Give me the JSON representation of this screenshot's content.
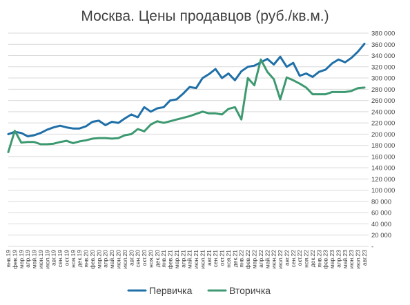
{
  "chart_data": {
    "type": "line",
    "title": "Москва. Цены продавцов (руб./кв.м.)",
    "xlabel": "",
    "ylabel": "",
    "ylim": [
      0,
      380000
    ],
    "y_ticks": [
      {
        "value": 0,
        "label": "-"
      },
      {
        "value": 20000,
        "label": "20 000"
      },
      {
        "value": 40000,
        "label": "40 000"
      },
      {
        "value": 60000,
        "label": "60 000"
      },
      {
        "value": 80000,
        "label": "80 000"
      },
      {
        "value": 100000,
        "label": "100 000"
      },
      {
        "value": 120000,
        "label": "120 000"
      },
      {
        "value": 140000,
        "label": "140 000"
      },
      {
        "value": 160000,
        "label": "160 000"
      },
      {
        "value": 180000,
        "label": "180 000"
      },
      {
        "value": 200000,
        "label": "200 000"
      },
      {
        "value": 220000,
        "label": "220 000"
      },
      {
        "value": 240000,
        "label": "240 000"
      },
      {
        "value": 260000,
        "label": "260 000"
      },
      {
        "value": 280000,
        "label": "280 000"
      },
      {
        "value": 300000,
        "label": "300 000"
      },
      {
        "value": 320000,
        "label": "320 000"
      },
      {
        "value": 340000,
        "label": "340 000"
      },
      {
        "value": 360000,
        "label": "360 000"
      },
      {
        "value": 380000,
        "label": "380 000"
      }
    ],
    "y_axis_side": "right",
    "grid": true,
    "legend_position": "bottom",
    "categories": [
      "янв.19",
      "фев.19",
      "мар.19",
      "апр.19",
      "май.19",
      "июн.19",
      "июл.19",
      "авг.19",
      "сен.19",
      "окт.19",
      "ноя.19",
      "дек.19",
      "янв.20",
      "фев.20",
      "мар.20",
      "апр.20",
      "май.20",
      "июн.20",
      "июл.20",
      "авг.20",
      "сен.20",
      "окт.20",
      "ноя.20",
      "дек.20",
      "янв.21",
      "фев.21",
      "мар.21",
      "апр.21",
      "май.21",
      "июн.21",
      "июл.21",
      "авг.21",
      "сен.21",
      "окт.21",
      "ноя.21",
      "дек.21",
      "янв.22",
      "фев.22",
      "мар.22",
      "апр.22",
      "май.22",
      "июн.22",
      "июл.22",
      "авг.22",
      "сен.22",
      "окт.22",
      "ноя.22",
      "дек.22",
      "янв.23",
      "фев.23",
      "мар.23",
      "апр.23",
      "май.23",
      "июн.23",
      "июл.23",
      "авг.23"
    ],
    "series": [
      {
        "name": "Первичка",
        "color": "#1f6fa8",
        "values": [
          200000,
          204000,
          202000,
          196000,
          198000,
          202000,
          208000,
          212000,
          215000,
          212000,
          210000,
          210000,
          214000,
          222000,
          224000,
          216000,
          222000,
          220000,
          228000,
          235000,
          230000,
          248000,
          240000,
          246000,
          248000,
          260000,
          262000,
          272000,
          284000,
          282000,
          300000,
          307000,
          316000,
          300000,
          308000,
          296000,
          312000,
          320000,
          322000,
          328000,
          334000,
          324000,
          338000,
          320000,
          327000,
          304000,
          308000,
          302000,
          311000,
          315000,
          326000,
          333000,
          328000,
          336000,
          347000,
          361000
        ]
      },
      {
        "name": "Вторичка",
        "color": "#3d9970",
        "values": [
          168000,
          206000,
          185000,
          186000,
          186000,
          182000,
          182000,
          183000,
          186000,
          188000,
          184000,
          187000,
          189000,
          192000,
          193000,
          193000,
          192000,
          193000,
          198000,
          200000,
          209000,
          205000,
          217000,
          223000,
          220000,
          223000,
          226000,
          229000,
          232000,
          236000,
          240000,
          237000,
          237000,
          235000,
          245000,
          248000,
          226000,
          300000,
          287000,
          333000,
          311000,
          298000,
          262000,
          301000,
          296000,
          290000,
          283000,
          271000,
          271000,
          271000,
          275000,
          275000,
          275000,
          277000,
          282000,
          283000
        ]
      }
    ]
  }
}
